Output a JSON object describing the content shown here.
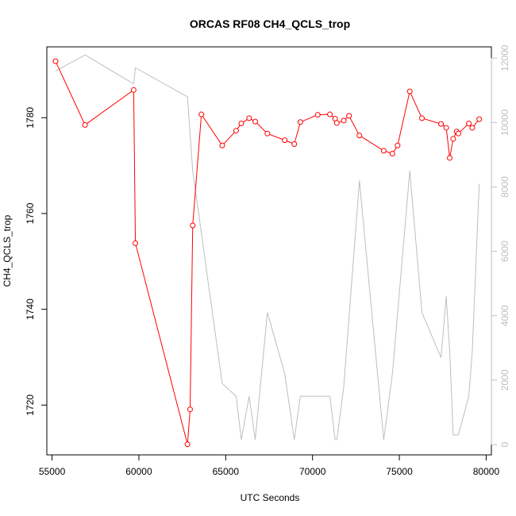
{
  "chart_data": {
    "type": "line",
    "title": "ORCAS RF08 CH4_QCLS_trop",
    "xlabel": "UTC Seconds",
    "ylabel": "CH4_QCLS_trop",
    "xlim": [
      54700,
      80300
    ],
    "ylim": [
      1709.6,
      1794.8
    ],
    "y2lim": [
      -320,
      12350
    ],
    "xticks": [
      55000,
      60000,
      65000,
      70000,
      75000,
      80000
    ],
    "yticks": [
      1720,
      1740,
      1760,
      1780
    ],
    "y2ticks": [
      0,
      2000,
      4000,
      6000,
      8000,
      10000,
      12000
    ],
    "grid": false,
    "legend": "none",
    "colors": {
      "primary": "#ff0000",
      "secondary": "#bebebe",
      "axis": "#000000"
    },
    "series": [
      {
        "axis": "left",
        "color": "#ff0000",
        "marker": "open-circle",
        "x": [
          55200,
          56900,
          59700,
          59800,
          62800,
          62950,
          63100,
          63600,
          64800,
          65600,
          65900,
          66350,
          66700,
          67400,
          68400,
          68950,
          69300,
          70300,
          71000,
          71300,
          71400,
          71800,
          72100,
          72700,
          74100,
          74600,
          74900,
          75600,
          76300,
          77400,
          77700,
          77900,
          78100,
          78300,
          78400,
          79000,
          79200,
          79600
        ],
        "y": [
          1791.8,
          1778.5,
          1785.8,
          1753.8,
          1711.8,
          1719.1,
          1757.5,
          1780.7,
          1774.2,
          1777.3,
          1778.8,
          1779.9,
          1779.2,
          1776.7,
          1775.3,
          1774.5,
          1779.1,
          1780.6,
          1780.7,
          1779.8,
          1778.9,
          1779.4,
          1780.4,
          1776.3,
          1773.1,
          1772.5,
          1774.2,
          1785.5,
          1779.9,
          1778.7,
          1777.9,
          1771.6,
          1775.6,
          1777.1,
          1776.7,
          1778.8,
          1777.9,
          1779.7
        ]
      },
      {
        "axis": "right",
        "color": "#bebebe",
        "marker": "none",
        "x": [
          55200,
          56900,
          59700,
          59800,
          62800,
          63100,
          64800,
          65600,
          65900,
          66350,
          66700,
          67400,
          68400,
          68950,
          69300,
          70300,
          71000,
          71300,
          71400,
          71800,
          72700,
          74100,
          74600,
          75600,
          76300,
          77400,
          77700,
          77900,
          78100,
          78300,
          78400,
          79000,
          79200,
          79600
        ],
        "y": [
          11600,
          12100,
          11200,
          11700,
          10800,
          8500,
          1900,
          1500,
          150,
          1500,
          150,
          4100,
          2200,
          150,
          1500,
          1500,
          1500,
          150,
          150,
          1800,
          8200,
          150,
          2200,
          8500,
          4100,
          2700,
          4600,
          2900,
          300,
          300,
          300,
          1500,
          2900,
          8100
        ]
      }
    ]
  }
}
